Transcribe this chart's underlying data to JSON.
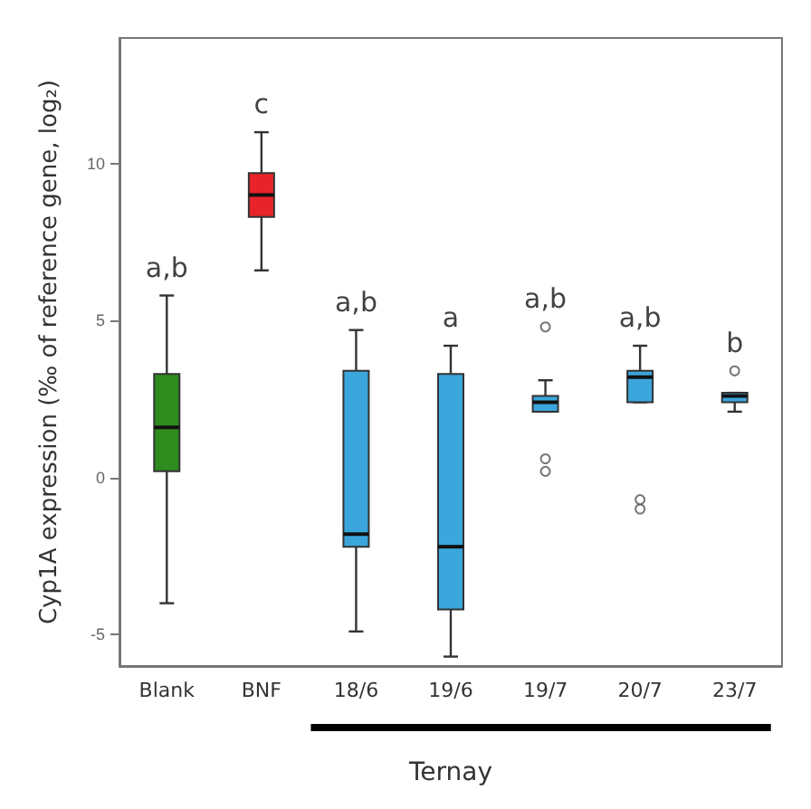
{
  "chart_data": {
    "type": "box",
    "xlabel": "Ternay",
    "ylabel": "Cyp1A expression (‰ of reference gene, log₂)",
    "categories": [
      "Blank",
      "BNF",
      "18/6",
      "19/6",
      "19/7",
      "20/7",
      "23/7"
    ],
    "colors": [
      "#2e8b1e",
      "#e8242a",
      "#3aa6dc",
      "#3aa6dc",
      "#3aa6dc",
      "#3aa6dc",
      "#3aa6dc"
    ],
    "boxes": [
      {
        "low": -4.0,
        "q1": 0.2,
        "median": 1.6,
        "q3": 3.3,
        "high": 5.8
      },
      {
        "low": 6.6,
        "q1": 8.3,
        "median": 9.0,
        "q3": 9.7,
        "high": 11.0
      },
      {
        "low": -4.9,
        "q1": -2.2,
        "median": -1.8,
        "q3": 3.4,
        "high": 4.7
      },
      {
        "low": -5.7,
        "q1": -4.2,
        "median": -2.2,
        "q3": 3.3,
        "high": 4.2
      },
      {
        "low": 2.1,
        "q1": 2.1,
        "median": 2.4,
        "q3": 2.6,
        "high": 3.1,
        "outliers": [
          4.8,
          0.6,
          0.2
        ]
      },
      {
        "low": 2.4,
        "q1": 2.4,
        "median": 3.2,
        "q3": 3.4,
        "high": 4.2,
        "outliers": [
          -0.7,
          -1.0
        ]
      },
      {
        "low": 2.1,
        "q1": 2.4,
        "median": 2.6,
        "q3": 2.7,
        "high": 2.7,
        "outliers": [
          3.4
        ]
      }
    ],
    "annotations": [
      "a,b",
      "c",
      "a,b",
      "a",
      "a,b",
      "a,b",
      "b"
    ],
    "ylim": [
      -6,
      14
    ],
    "yticks": [
      -5,
      0,
      5,
      10
    ],
    "grid": false
  }
}
